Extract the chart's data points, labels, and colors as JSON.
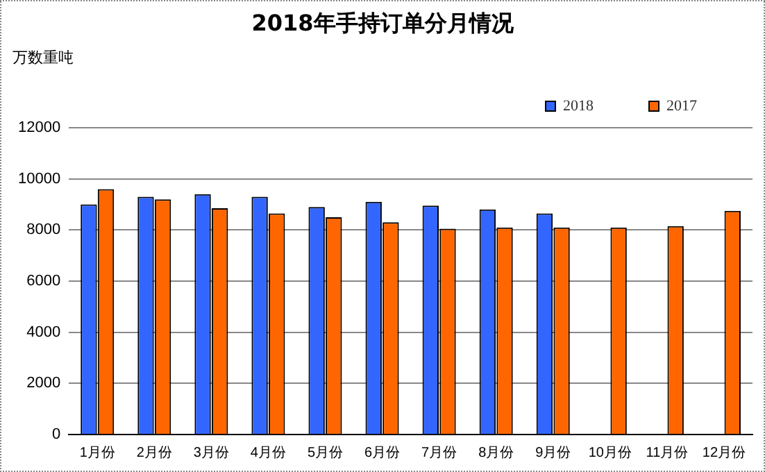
{
  "chart_data": {
    "type": "bar",
    "title": "2018年手持订单分月情况",
    "ylabel": "万数重吨",
    "categories": [
      "1月份",
      "2月份",
      "3月份",
      "4月份",
      "5月份",
      "6月份",
      "7月份",
      "8月份",
      "9月份",
      "10月份",
      "11月份",
      "12月份"
    ],
    "series": [
      {
        "name": "2018",
        "color": "#3366ff",
        "values": [
          9000,
          9300,
          9400,
          9300,
          8900,
          9100,
          8950,
          8800,
          8650,
          null,
          null,
          null
        ]
      },
      {
        "name": "2017",
        "color": "#ff6600",
        "values": [
          9600,
          9200,
          8850,
          8650,
          8500,
          8300,
          8050,
          8100,
          8100,
          8100,
          8150,
          8750
        ]
      }
    ],
    "ylim": [
      0,
      12000
    ],
    "yticks": [
      0,
      2000,
      4000,
      6000,
      8000,
      10000,
      12000
    ],
    "grid": "y",
    "legend": "top right"
  }
}
